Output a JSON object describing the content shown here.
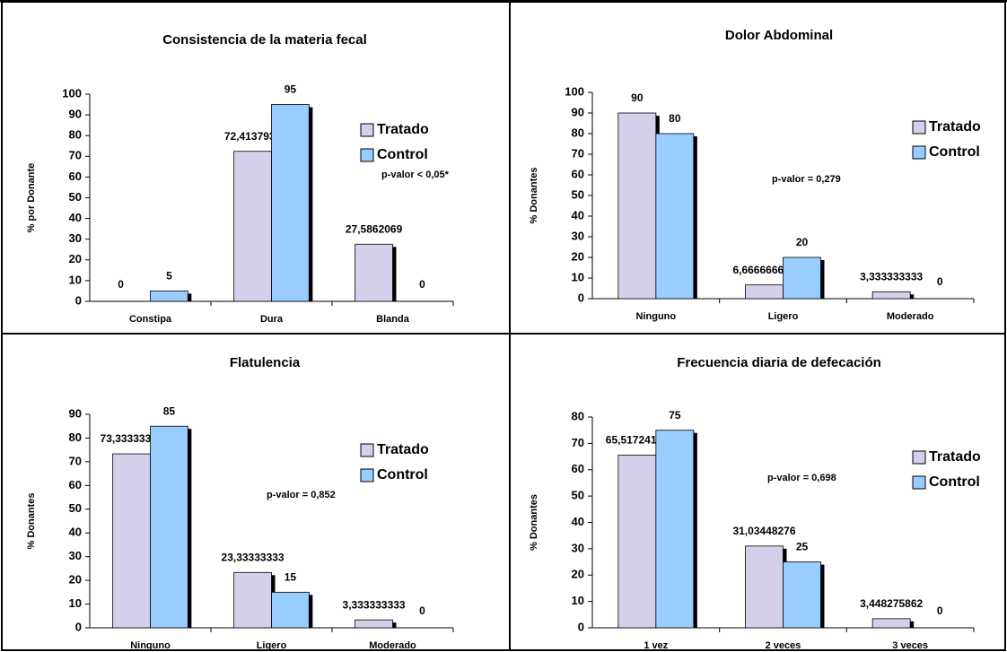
{
  "chart_data": [
    {
      "type": "bar",
      "title": "Consistencia de la materia fecal",
      "y_label": "% por Donante",
      "categories": [
        "Constipa",
        "Dura",
        "Blanda"
      ],
      "series": [
        {
          "name": "Tratado",
          "color": "#d4d0ec",
          "values": [
            0,
            72.4137931,
            27.5862069
          ],
          "value_labels": [
            "0",
            "72,4137931",
            "27,5862069"
          ]
        },
        {
          "name": "Control",
          "color": "#99ccff",
          "values": [
            5,
            95,
            0
          ],
          "value_labels": [
            "5",
            "95",
            "0"
          ]
        }
      ],
      "ylim": [
        0,
        100
      ],
      "yticks": [
        0,
        10,
        20,
        30,
        40,
        50,
        60,
        70,
        80,
        90,
        100
      ],
      "annotation": "p-valor < 0,05*",
      "legend": "right"
    },
    {
      "type": "bar",
      "title": "Dolor Abdominal",
      "y_label": "% Donantes",
      "categories": [
        "Ninguno",
        "Ligero",
        "Moderado"
      ],
      "series": [
        {
          "name": "Tratado",
          "color": "#d4d0ec",
          "values": [
            90,
            6.666666667,
            3.333333333
          ],
          "value_labels": [
            "90",
            "6,666666667",
            "3,333333333"
          ]
        },
        {
          "name": "Control",
          "color": "#99ccff",
          "values": [
            80,
            20,
            0
          ],
          "value_labels": [
            "80",
            "20",
            "0"
          ]
        }
      ],
      "ylim": [
        0,
        100
      ],
      "yticks": [
        0,
        10,
        20,
        30,
        40,
        50,
        60,
        70,
        80,
        90,
        100
      ],
      "annotation": "p-valor = 0,279",
      "legend": "right"
    },
    {
      "type": "bar",
      "title": "Flatulencia",
      "y_label": "%  Donantes",
      "categories": [
        "Ninguno",
        "Ligero",
        "Moderado"
      ],
      "series": [
        {
          "name": "Tratado",
          "color": "#d4d0ec",
          "values": [
            73.33333333,
            23.33333333,
            3.333333333
          ],
          "value_labels": [
            "73,33333333",
            "23,33333333",
            "3,333333333"
          ]
        },
        {
          "name": "Control",
          "color": "#99ccff",
          "values": [
            85,
            15,
            0
          ],
          "value_labels": [
            "85",
            "15",
            "0"
          ]
        }
      ],
      "ylim": [
        0,
        90
      ],
      "yticks": [
        0,
        10,
        20,
        30,
        40,
        50,
        60,
        70,
        80,
        90
      ],
      "annotation": "p-valor = 0,852",
      "legend": "right"
    },
    {
      "type": "bar",
      "title": "Frecuencia diaria de defecación",
      "y_label": "% Donantes",
      "categories": [
        "1 vez",
        "2 veces",
        "3 veces"
      ],
      "series": [
        {
          "name": "Tratado",
          "color": "#d4d0ec",
          "values": [
            65.51724138,
            31.03448276,
            3.448275862
          ],
          "value_labels": [
            "65,51724138",
            "31,03448276",
            "3,448275862"
          ]
        },
        {
          "name": "Control",
          "color": "#99ccff",
          "values": [
            75,
            25,
            0
          ],
          "value_labels": [
            "75",
            "25",
            "0"
          ]
        }
      ],
      "ylim": [
        0,
        80
      ],
      "yticks": [
        0,
        10,
        20,
        30,
        40,
        50,
        60,
        70,
        80
      ],
      "annotation": "p-valor = 0,698",
      "legend": "right"
    }
  ]
}
